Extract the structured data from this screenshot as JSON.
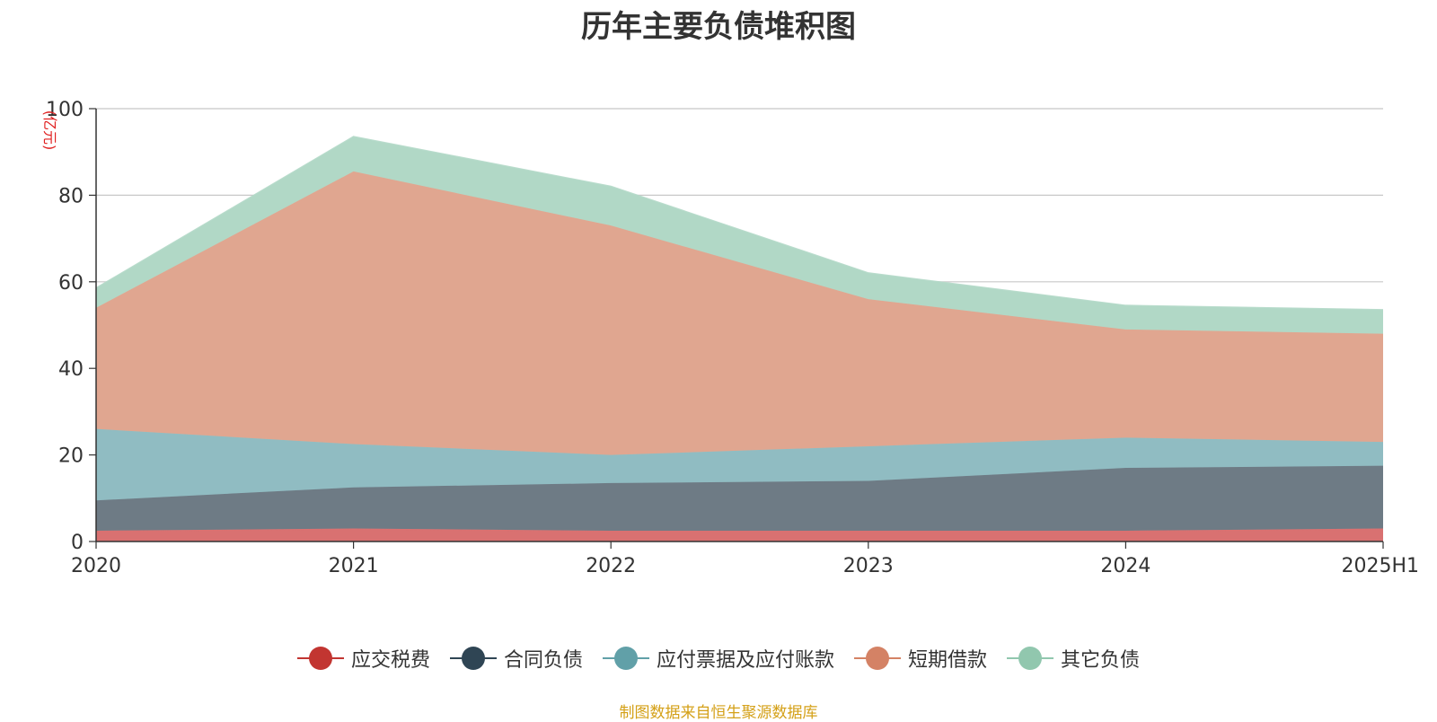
{
  "chart_data": {
    "type": "area",
    "stacked": true,
    "title": "历年主要负债堆积图",
    "unit_label": "(亿元)",
    "categories": [
      "2020",
      "2021",
      "2022",
      "2023",
      "2024",
      "2025H1"
    ],
    "ylim": [
      0,
      100
    ],
    "yticks": [
      0,
      20,
      40,
      60,
      80,
      100
    ],
    "grid": true,
    "legend_position": "bottom",
    "series": [
      {
        "name": "应交税费",
        "values": [
          2.5,
          3.0,
          2.5,
          2.5,
          2.5,
          3.0
        ],
        "color": "#c23531",
        "area_color": "#d97171"
      },
      {
        "name": "合同负债",
        "values": [
          7.0,
          9.5,
          11.0,
          11.5,
          14.5,
          14.5
        ],
        "color": "#2f4554",
        "area_color": "#6e7b85"
      },
      {
        "name": "应付票据及应付账款",
        "values": [
          16.5,
          10.0,
          6.5,
          8.0,
          7.0,
          5.5
        ],
        "color": "#61a0a8",
        "area_color": "#90bcc2"
      },
      {
        "name": "短期借款",
        "values": [
          28.0,
          63.0,
          53.0,
          34.0,
          25.0,
          25.0
        ],
        "color": "#d48265",
        "area_color": "#e0a690"
      },
      {
        "name": "其它负债",
        "values": [
          4.5,
          8.0,
          9.0,
          6.0,
          5.5,
          5.5
        ],
        "color": "#91c7ae",
        "area_color": "#b1d8c6"
      }
    ]
  },
  "source_note": "制图数据来自恒生聚源数据库"
}
